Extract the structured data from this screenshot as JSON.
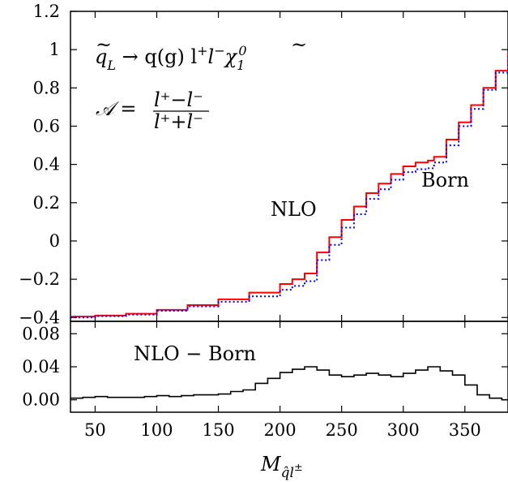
{
  "chart_data": [
    {
      "type": "line",
      "panel": "main",
      "xlim": [
        30,
        385
      ],
      "ylim": [
        -0.42,
        1.2
      ],
      "yticks": [
        1.2,
        1,
        0.8,
        0.6,
        0.4,
        0.2,
        0,
        -0.2,
        -0.4
      ],
      "ytick_labels": [
        "1.2",
        "1",
        "0.8",
        "0.6",
        "0.4",
        "0.2",
        "0",
        "−0.2",
        "−0.4"
      ],
      "process_label": "q̃_L → q(g) l⁺ l⁻ χ̃₁⁰",
      "asymmetry_label": "𝒜 = (l⁺−l⁻)/(l⁺+l⁻)",
      "series": [
        {
          "name": "NLO",
          "color": "#ff0000",
          "style": "solid",
          "x": [
            30,
            50,
            75,
            100,
            125,
            150,
            175,
            200,
            210,
            220,
            230,
            240,
            250,
            260,
            270,
            280,
            290,
            300,
            310,
            320,
            325,
            335,
            345,
            355,
            365,
            375,
            385
          ],
          "y": [
            -0.395,
            -0.39,
            -0.38,
            -0.36,
            -0.335,
            -0.305,
            -0.27,
            -0.225,
            -0.2,
            -0.17,
            -0.06,
            0.02,
            0.11,
            0.18,
            0.25,
            0.3,
            0.35,
            0.39,
            0.41,
            0.42,
            0.44,
            0.53,
            0.62,
            0.71,
            0.8,
            0.89,
            0.98
          ]
        },
        {
          "name": "Born",
          "color": "#0000ff",
          "style": "dotted",
          "x": [
            30,
            50,
            75,
            100,
            125,
            150,
            175,
            200,
            210,
            220,
            230,
            240,
            250,
            260,
            270,
            280,
            290,
            300,
            310,
            320,
            325,
            335,
            345,
            355,
            365,
            375,
            385
          ],
          "y": [
            -0.4,
            -0.393,
            -0.385,
            -0.365,
            -0.342,
            -0.318,
            -0.29,
            -0.255,
            -0.235,
            -0.21,
            -0.1,
            -0.02,
            0.07,
            0.14,
            0.22,
            0.27,
            0.32,
            0.36,
            0.375,
            0.38,
            0.41,
            0.5,
            0.6,
            0.69,
            0.79,
            0.88,
            0.97
          ]
        }
      ],
      "annotations": [
        {
          "text": "NLO",
          "x": 245,
          "y": 0.09
        },
        {
          "text": "Born",
          "x": 350,
          "y": 0.23
        }
      ]
    },
    {
      "type": "line",
      "panel": "difference",
      "xlim": [
        30,
        385
      ],
      "ylim": [
        -0.015,
        0.095
      ],
      "yticks": [
        0.08,
        0.04,
        0.0
      ],
      "ytick_labels": [
        "0.08",
        "0.04",
        "0.00"
      ],
      "xticks": [
        50,
        100,
        150,
        200,
        250,
        300,
        350
      ],
      "xtick_labels": [
        "50",
        "100",
        "150",
        "200",
        "250",
        "300",
        "350"
      ],
      "xlabel": "M_q̂l±",
      "series": [
        {
          "name": "NLO − Born",
          "color": "#000000",
          "style": "step",
          "x": [
            30,
            40,
            50,
            60,
            70,
            80,
            90,
            100,
            110,
            120,
            130,
            140,
            150,
            160,
            170,
            180,
            190,
            200,
            210,
            220,
            230,
            240,
            250,
            260,
            270,
            280,
            290,
            300,
            310,
            320,
            330,
            340,
            350,
            360,
            370,
            380
          ],
          "y": [
            0.002,
            0.003,
            0.004,
            0.003,
            0.003,
            0.003,
            0.004,
            0.005,
            0.004,
            0.005,
            0.006,
            0.006,
            0.007,
            0.01,
            0.012,
            0.02,
            0.026,
            0.033,
            0.037,
            0.04,
            0.036,
            0.03,
            0.028,
            0.03,
            0.032,
            0.03,
            0.028,
            0.032,
            0.036,
            0.04,
            0.035,
            0.03,
            0.018,
            0.006,
            0.002,
            0.0
          ]
        }
      ],
      "annotations": [
        {
          "text": "NLO − Born",
          "x": 140,
          "y": 0.054
        }
      ]
    }
  ]
}
